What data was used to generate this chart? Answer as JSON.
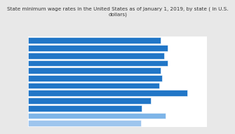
{
  "title": "State minimum wage rates in the United States as of January 1, 2019, by state ( in U.S.\ndollars)",
  "values": [
    10.0,
    10.5,
    10.25,
    10.5,
    10.0,
    10.1,
    9.86,
    12.0,
    9.25,
    8.55,
    10.35,
    8.5
  ],
  "bar_colors": [
    "#2176c7",
    "#2176c7",
    "#2176c7",
    "#2176c7",
    "#2176c7",
    "#2176c7",
    "#2176c7",
    "#2176c7",
    "#2176c7",
    "#2176c7",
    "#7eb5e8",
    "#9ec5ee"
  ],
  "xlim": [
    0,
    13.5
  ],
  "background_color": "#e8e8e8",
  "plot_bg": "#ffffff",
  "title_fontsize": 5.2,
  "title_color": "#333333"
}
